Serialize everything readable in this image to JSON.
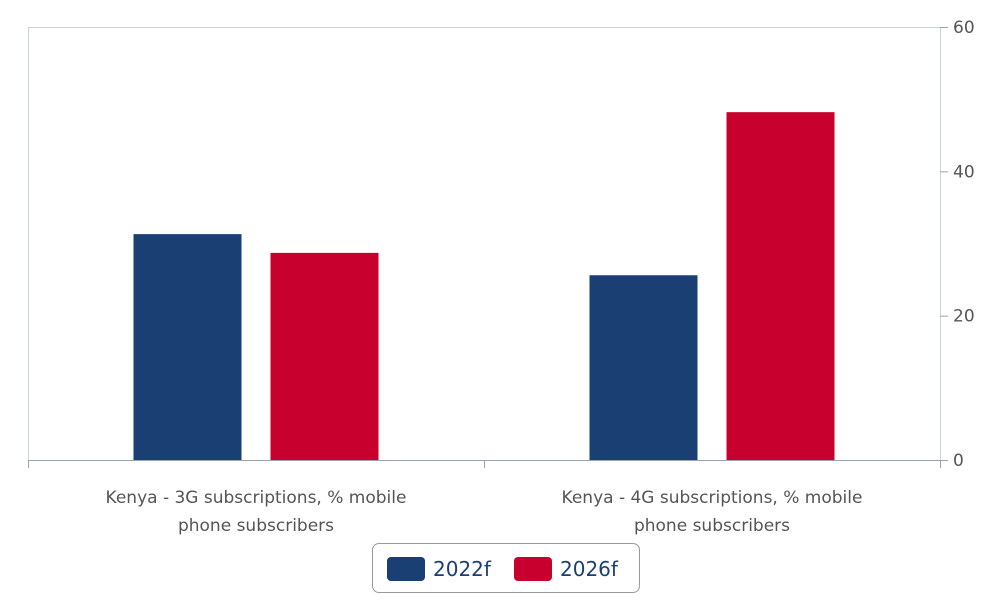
{
  "chart_data": {
    "type": "bar",
    "categories": [
      "Kenya - 3G subscriptions, % mobile phone subscribers",
      "Kenya - 4G subscriptions, % mobile phone subscribers"
    ],
    "category_lines": [
      [
        "Kenya - 3G subscriptions, % mobile",
        "phone subscribers"
      ],
      [
        "Kenya - 4G subscriptions, % mobile",
        "phone subscribers"
      ]
    ],
    "series": [
      {
        "name": "2022f",
        "color": "#1a3f73",
        "values": [
          31.3,
          25.6
        ]
      },
      {
        "name": "2026f",
        "color": "#c8002d",
        "values": [
          28.7,
          48.2
        ]
      }
    ],
    "y_ticks": [
      "0",
      "20",
      "40",
      "60"
    ],
    "ylim": [
      0,
      60
    ],
    "y_axis_side": "right",
    "grid": false,
    "legend_position": "bottom-center"
  }
}
